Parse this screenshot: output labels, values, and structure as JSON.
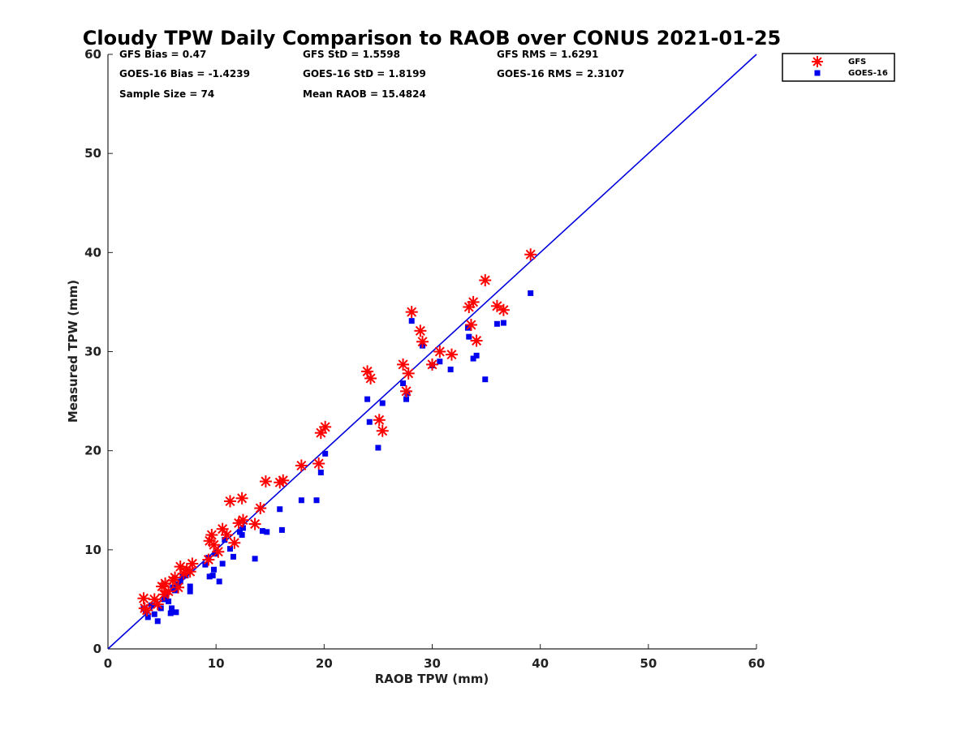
{
  "chart_data": {
    "type": "scatter",
    "title": "Cloudy TPW Daily Comparison to RAOB over CONUS 2021-01-25",
    "xlabel": "RAOB TPW (mm)",
    "ylabel": "Measured TPW (mm)",
    "xlim": [
      0,
      60
    ],
    "ylim": [
      0,
      60
    ],
    "xticks": [
      0,
      10,
      20,
      30,
      40,
      50,
      60
    ],
    "yticks": [
      0,
      10,
      20,
      30,
      40,
      50,
      60
    ],
    "grid": false,
    "legend_position": "top-right outside",
    "reference_line": {
      "from": [
        0,
        0
      ],
      "to": [
        60,
        60
      ],
      "color": "#0000dd"
    },
    "stats": [
      [
        "GFS Bias = 0.47",
        "GFS StD = 1.5598",
        "GFS RMS = 1.6291"
      ],
      [
        "GOES-16 Bias = -1.4239",
        "GOES-16 StD = 1.8199",
        "GOES-16 RMS = 2.3107"
      ],
      [
        "Sample Size = 74",
        "Mean RAOB = 15.4824"
      ]
    ],
    "series": [
      {
        "name": "GFS",
        "marker": "asterisk",
        "color": "#ff0000",
        "points": [
          [
            3.3,
            5.1
          ],
          [
            3.4,
            4.1
          ],
          [
            3.6,
            3.9
          ],
          [
            4.3,
            5.0
          ],
          [
            4.6,
            4.5
          ],
          [
            5.0,
            6.3
          ],
          [
            5.2,
            5.5
          ],
          [
            5.3,
            6.6
          ],
          [
            5.6,
            5.8
          ],
          [
            6.0,
            6.9
          ],
          [
            6.2,
            7.2
          ],
          [
            6.5,
            6.2
          ],
          [
            6.7,
            8.3
          ],
          [
            7.0,
            7.6
          ],
          [
            7.3,
            8.0
          ],
          [
            7.8,
            8.6
          ],
          [
            7.6,
            7.8
          ],
          [
            9.3,
            9.0
          ],
          [
            9.4,
            10.9
          ],
          [
            9.6,
            11.5
          ],
          [
            9.8,
            10.5
          ],
          [
            10.2,
            9.8
          ],
          [
            10.6,
            12.1
          ],
          [
            11.0,
            11.5
          ],
          [
            11.3,
            14.9
          ],
          [
            11.7,
            10.7
          ],
          [
            12.1,
            12.7
          ],
          [
            12.4,
            15.2
          ],
          [
            12.5,
            13.0
          ],
          [
            13.6,
            12.6
          ],
          [
            14.1,
            14.2
          ],
          [
            14.6,
            16.9
          ],
          [
            15.9,
            16.8
          ],
          [
            16.2,
            17.0
          ],
          [
            17.9,
            18.5
          ],
          [
            19.5,
            18.7
          ],
          [
            19.7,
            21.8
          ],
          [
            20.1,
            22.4
          ],
          [
            24.0,
            28.0
          ],
          [
            24.3,
            27.3
          ],
          [
            25.1,
            23.1
          ],
          [
            25.4,
            22.0
          ],
          [
            27.3,
            28.7
          ],
          [
            27.6,
            26.0
          ],
          [
            27.8,
            27.8
          ],
          [
            28.1,
            34.0
          ],
          [
            28.9,
            32.1
          ],
          [
            29.1,
            31.0
          ],
          [
            30.0,
            28.7
          ],
          [
            30.7,
            30.0
          ],
          [
            31.8,
            29.7
          ],
          [
            33.4,
            34.5
          ],
          [
            33.6,
            32.7
          ],
          [
            33.8,
            35.0
          ],
          [
            34.1,
            31.1
          ],
          [
            34.9,
            37.2
          ],
          [
            36.0,
            34.6
          ],
          [
            36.6,
            34.2
          ],
          [
            39.1,
            39.8
          ]
        ]
      },
      {
        "name": "GOES-16",
        "marker": "square",
        "color": "#0000ee",
        "points": [
          [
            3.3,
            4.1
          ],
          [
            3.5,
            3.8
          ],
          [
            3.7,
            3.2
          ],
          [
            4.0,
            4.4
          ],
          [
            4.3,
            3.5
          ],
          [
            4.6,
            2.8
          ],
          [
            4.9,
            4.1
          ],
          [
            5.2,
            5.0
          ],
          [
            5.4,
            5.4
          ],
          [
            5.6,
            4.8
          ],
          [
            5.8,
            3.6
          ],
          [
            5.9,
            4.1
          ],
          [
            6.0,
            6.2
          ],
          [
            6.2,
            5.9
          ],
          [
            6.3,
            3.7
          ],
          [
            6.5,
            6.5
          ],
          [
            6.7,
            6.8
          ],
          [
            6.9,
            7.3
          ],
          [
            7.2,
            7.4
          ],
          [
            7.6,
            6.3
          ],
          [
            7.6,
            5.8
          ],
          [
            9.0,
            8.5
          ],
          [
            9.3,
            9.2
          ],
          [
            9.4,
            7.3
          ],
          [
            9.7,
            7.4
          ],
          [
            9.8,
            8.0
          ],
          [
            9.9,
            9.6
          ],
          [
            10.3,
            6.8
          ],
          [
            10.6,
            8.6
          ],
          [
            10.8,
            11.0
          ],
          [
            11.3,
            10.1
          ],
          [
            11.6,
            9.3
          ],
          [
            12.2,
            11.8
          ],
          [
            12.4,
            11.5
          ],
          [
            12.5,
            12.2
          ],
          [
            13.6,
            9.1
          ],
          [
            14.3,
            11.9
          ],
          [
            14.7,
            11.8
          ],
          [
            15.9,
            14.1
          ],
          [
            16.1,
            12.0
          ],
          [
            17.9,
            15.0
          ],
          [
            19.3,
            15.0
          ],
          [
            19.7,
            17.8
          ],
          [
            20.1,
            19.7
          ],
          [
            24.0,
            25.2
          ],
          [
            24.2,
            22.9
          ],
          [
            25.0,
            20.3
          ],
          [
            25.4,
            24.8
          ],
          [
            27.3,
            26.8
          ],
          [
            27.6,
            25.2
          ],
          [
            27.7,
            25.8
          ],
          [
            28.1,
            33.1
          ],
          [
            29.1,
            30.6
          ],
          [
            30.0,
            28.6
          ],
          [
            30.7,
            29.0
          ],
          [
            31.7,
            28.2
          ],
          [
            33.3,
            32.4
          ],
          [
            33.4,
            31.5
          ],
          [
            33.8,
            29.3
          ],
          [
            34.1,
            29.6
          ],
          [
            34.9,
            27.2
          ],
          [
            36.0,
            32.8
          ],
          [
            36.6,
            32.9
          ],
          [
            39.1,
            35.9
          ]
        ]
      }
    ]
  }
}
